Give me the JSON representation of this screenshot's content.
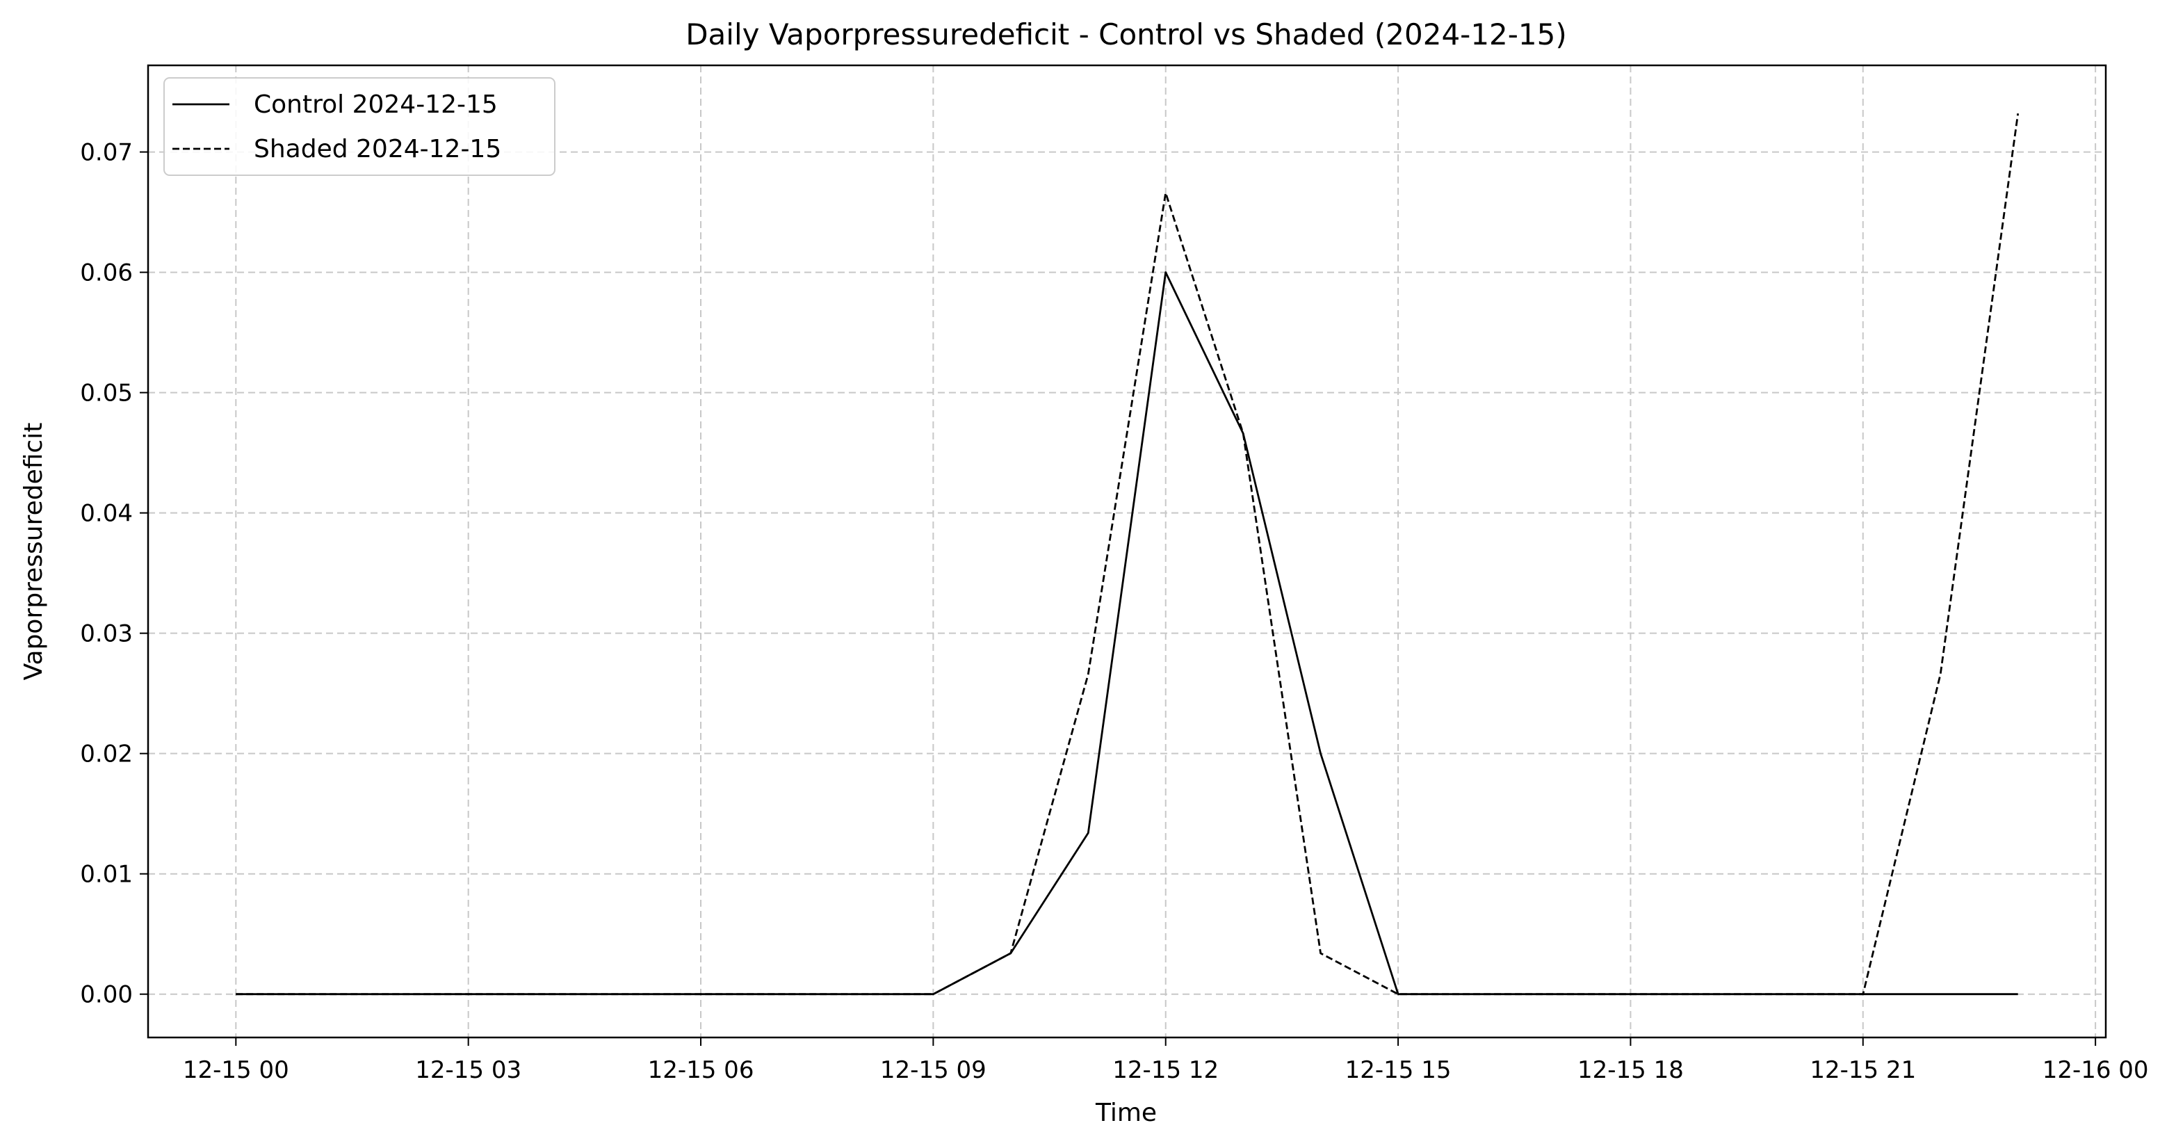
{
  "chart_data": {
    "type": "line",
    "title": "Daily Vaporpressuredeficit - Control vs Shaded (2024-12-15)",
    "xlabel": "Time",
    "ylabel": "Vaporpressuredeficit",
    "x_tick_labels": [
      "12-15 00",
      "12-15 03",
      "12-15 06",
      "12-15 09",
      "12-15 12",
      "12-15 15",
      "12-15 18",
      "12-15 21",
      "12-16 00"
    ],
    "y_tick_labels": [
      "0.00",
      "0.01",
      "0.02",
      "0.03",
      "0.04",
      "0.05",
      "0.06",
      "0.07"
    ],
    "xlim": [
      "2024-12-14 22:52",
      "2024-12-16 00:08"
    ],
    "ylim": [
      -0.0036,
      0.0772
    ],
    "x_unit": "date-time",
    "grid": true,
    "legend_position": "top-left",
    "series": [
      {
        "name": "Control 2024-12-15",
        "line_style": "solid",
        "color": "#000000",
        "x": [
          "2024-12-15 00:00",
          "2024-12-15 01:00",
          "2024-12-15 02:00",
          "2024-12-15 03:00",
          "2024-12-15 04:00",
          "2024-12-15 05:00",
          "2024-12-15 06:00",
          "2024-12-15 07:00",
          "2024-12-15 08:00",
          "2024-12-15 09:00",
          "2024-12-15 10:00",
          "2024-12-15 11:00",
          "2024-12-15 12:00",
          "2024-12-15 13:00",
          "2024-12-15 14:00",
          "2024-12-15 15:00",
          "2024-12-15 16:00",
          "2024-12-15 17:00",
          "2024-12-15 18:00",
          "2024-12-15 19:00",
          "2024-12-15 20:00",
          "2024-12-15 21:00",
          "2024-12-15 22:00",
          "2024-12-15 23:00"
        ],
        "y": [
          0,
          0,
          0,
          0,
          0,
          0,
          0,
          0,
          0,
          0,
          0.0034,
          0.0134,
          0.06,
          0.0466,
          0.02,
          0,
          0,
          0,
          0,
          0,
          0,
          0,
          0,
          0
        ]
      },
      {
        "name": "Shaded 2024-12-15",
        "line_style": "dashed",
        "color": "#000000",
        "x": [
          "2024-12-15 00:00",
          "2024-12-15 01:00",
          "2024-12-15 02:00",
          "2024-12-15 03:00",
          "2024-12-15 04:00",
          "2024-12-15 05:00",
          "2024-12-15 06:00",
          "2024-12-15 07:00",
          "2024-12-15 08:00",
          "2024-12-15 09:00",
          "2024-12-15 10:00",
          "2024-12-15 11:00",
          "2024-12-15 12:00",
          "2024-12-15 13:00",
          "2024-12-15 14:00",
          "2024-12-15 15:00",
          "2024-12-15 16:00",
          "2024-12-15 17:00",
          "2024-12-15 18:00",
          "2024-12-15 19:00",
          "2024-12-15 20:00",
          "2024-12-15 21:00",
          "2024-12-15 22:00",
          "2024-12-15 23:00"
        ],
        "y": [
          0,
          0,
          0,
          0,
          0,
          0,
          0,
          0,
          0,
          0,
          0.0034,
          0.0266,
          0.0666,
          0.0466,
          0.0034,
          0,
          0,
          0,
          0,
          0,
          0,
          0,
          0.0266,
          0.0732
        ]
      }
    ]
  }
}
